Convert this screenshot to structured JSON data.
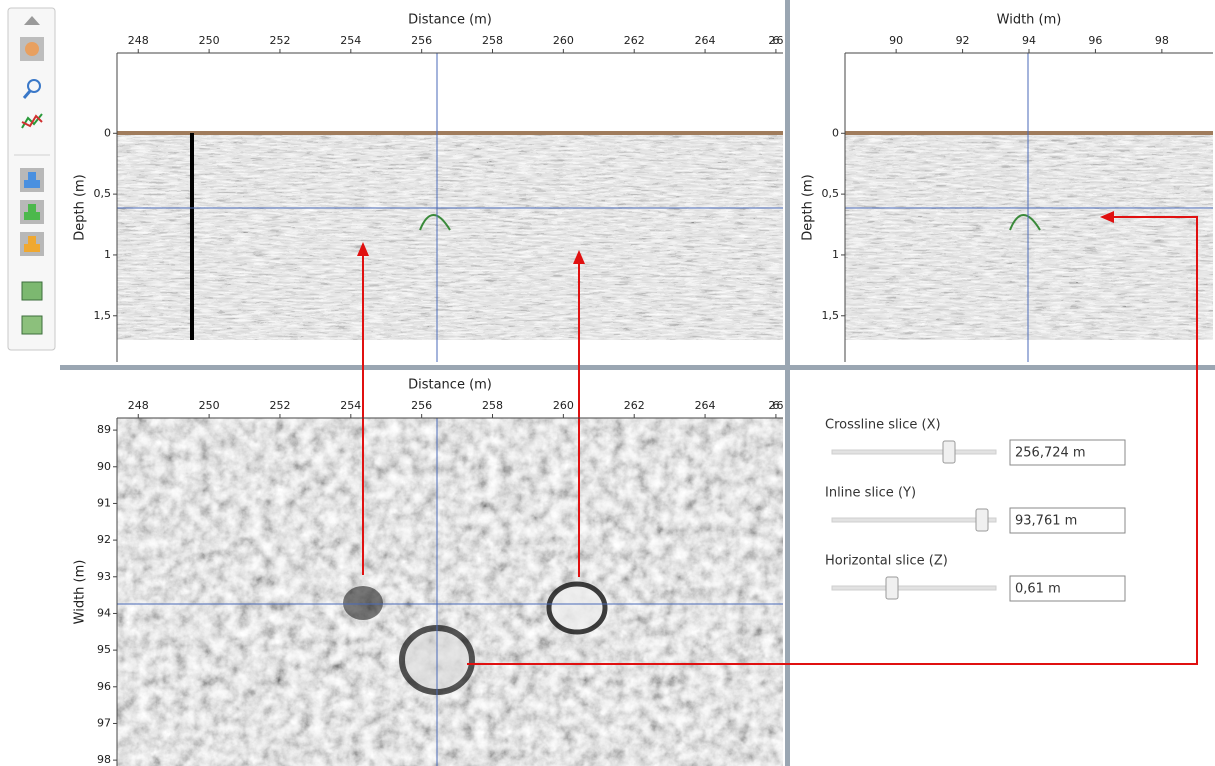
{
  "inline_view": {
    "x_label": "Distance (m)",
    "y_label": "Depth (m)",
    "xlim": [
      247.4,
      266.2
    ],
    "xticks": [
      248,
      250,
      252,
      254,
      256,
      258,
      260,
      262,
      264,
      266
    ],
    "ylim": [
      -0.66,
      1.88
    ],
    "yticks": [
      0,
      {
        "value": 0.5,
        "label": "0,5"
      },
      1,
      {
        "value": 1.5,
        "label": "1,5"
      }
    ]
  },
  "crossline_view": {
    "x_label": "Width (m)",
    "y_label": "Depth (m)",
    "xlim": [
      88.46,
      99.54
    ],
    "xticks": [
      90,
      92,
      94,
      96,
      98
    ],
    "ylim": [
      -0.66,
      1.88
    ],
    "yticks": [
      0,
      {
        "value": 0.5,
        "label": "0,5"
      },
      1,
      {
        "value": 1.5,
        "label": "1,5"
      }
    ]
  },
  "slice_view": {
    "x_label": "Distance (m)",
    "y_label": "Width (m)",
    "xlim": [
      247.4,
      266.2
    ],
    "xticks": [
      248,
      250,
      252,
      254,
      256,
      258,
      260,
      262,
      264,
      266
    ],
    "ylim": [
      88.67,
      98.16
    ],
    "yticks": [
      89,
      90,
      91,
      92,
      93,
      94,
      95,
      96,
      97,
      98
    ]
  },
  "controls": [
    {
      "label": "Crossline slice (X)",
      "value": "256,724 m"
    },
    {
      "label": "Inline slice (Y)",
      "value": "93,761 m"
    },
    {
      "label": "Horizontal slice (Z)",
      "value": "0,61 m"
    }
  ]
}
